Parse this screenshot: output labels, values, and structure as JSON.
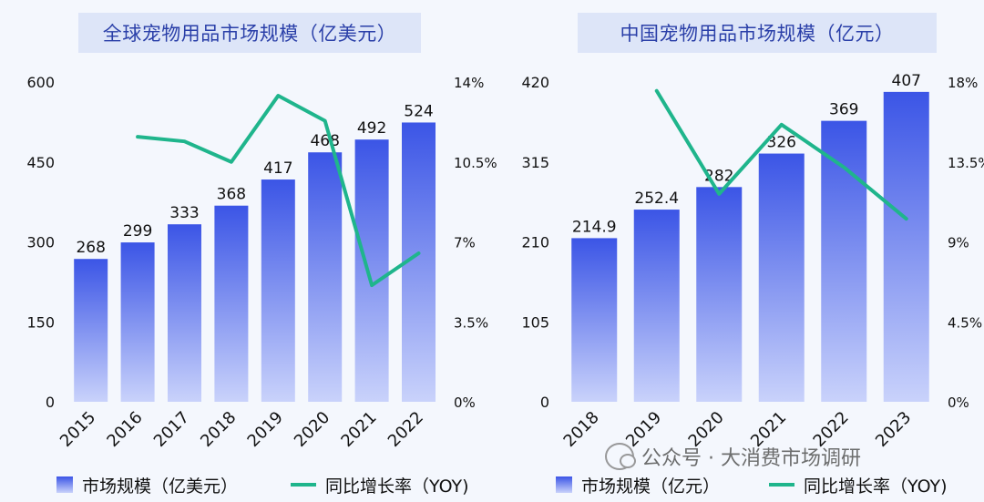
{
  "titles": {
    "left": "全球宠物用品市场规模（亿美元）",
    "right": "中国宠物用品市场规模（亿元）"
  },
  "legend": {
    "left_bar": "市场规模（亿美元）",
    "left_line": "同比增长率（YOY)",
    "right_bar": "市场规模（亿元）",
    "right_line": "同比增长率（YOY)"
  },
  "watermark": "公众号 · 大消费市场调研",
  "colors": {
    "bar_top": "#3b55e6",
    "bar_bottom": "#c9d2fb",
    "line": "#1fb58c",
    "title_bg": "#dde5f8",
    "title_text": "#2a3fa8"
  },
  "chart_data": [
    {
      "type": "bar+line",
      "title": "全球宠物用品市场规模（亿美元）",
      "categories": [
        "2015",
        "2016",
        "2017",
        "2018",
        "2019",
        "2020",
        "2021",
        "2022"
      ],
      "series": [
        {
          "name": "市场规模（亿美元）",
          "type": "bar",
          "axis": "left",
          "values": [
            268,
            299,
            333,
            368,
            417,
            468,
            492,
            524
          ]
        },
        {
          "name": "同比增长率（YOY)",
          "type": "line",
          "axis": "right",
          "values": [
            null,
            11.6,
            11.4,
            10.5,
            13.4,
            12.3,
            5.1,
            6.5
          ]
        }
      ],
      "y_left": {
        "ticks": [
          "0",
          "150",
          "300",
          "450",
          "600"
        ],
        "lim": [
          0,
          600
        ]
      },
      "y_right": {
        "ticks": [
          "0%",
          "3.5%",
          "7%",
          "10.5%",
          "14%"
        ],
        "lim": [
          0,
          14
        ]
      }
    },
    {
      "type": "bar+line",
      "title": "中国宠物用品市场规模（亿元）",
      "categories": [
        "2018",
        "2019",
        "2020",
        "2021",
        "2022",
        "2023"
      ],
      "series": [
        {
          "name": "市场规模（亿元）",
          "type": "bar",
          "axis": "left",
          "values": [
            214.9,
            252.4,
            282,
            326,
            369,
            407
          ]
        },
        {
          "name": "同比增长率（YOY)",
          "type": "line",
          "axis": "right",
          "values": [
            null,
            17.5,
            11.7,
            15.6,
            13.2,
            10.3
          ]
        }
      ],
      "y_left": {
        "ticks": [
          "0",
          "105",
          "210",
          "315",
          "420"
        ],
        "lim": [
          0,
          420
        ]
      },
      "y_right": {
        "ticks": [
          "0%",
          "4.5%",
          "9%",
          "13.5%",
          "18%"
        ],
        "lim": [
          0,
          18
        ]
      }
    }
  ]
}
